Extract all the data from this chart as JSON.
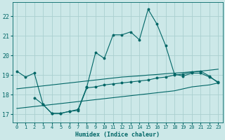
{
  "xlabel": "Humidex (Indice chaleur)",
  "bg_color": "#cce8e8",
  "grid_color": "#aacfcf",
  "line_color": "#006666",
  "xlim": [
    -0.5,
    23.5
  ],
  "ylim": [
    16.6,
    22.7
  ],
  "xticks": [
    0,
    1,
    2,
    3,
    4,
    5,
    6,
    7,
    8,
    9,
    10,
    11,
    12,
    13,
    14,
    15,
    16,
    17,
    18,
    19,
    20,
    21,
    22,
    23
  ],
  "yticks": [
    17,
    18,
    19,
    20,
    21,
    22
  ],
  "line1_x": [
    0,
    1,
    2,
    3,
    4,
    5,
    6,
    7,
    8,
    9,
    10,
    11,
    12,
    13,
    14,
    15,
    16,
    17,
    18,
    19,
    20,
    21,
    22,
    23
  ],
  "line1_y": [
    19.2,
    18.9,
    19.1,
    17.5,
    17.05,
    17.05,
    17.15,
    17.25,
    18.4,
    20.15,
    19.85,
    21.05,
    21.05,
    21.2,
    20.8,
    22.35,
    21.6,
    20.5,
    19.05,
    18.95,
    19.1,
    19.1,
    18.9,
    18.65
  ],
  "line2_x": [
    0,
    1,
    2,
    3,
    4,
    5,
    6,
    7,
    8,
    9,
    10,
    11,
    12,
    13,
    14,
    15,
    16,
    17,
    18,
    19,
    20,
    21,
    22,
    23
  ],
  "line2_y": [
    18.3,
    18.35,
    18.4,
    18.45,
    18.5,
    18.55,
    18.6,
    18.65,
    18.7,
    18.75,
    18.8,
    18.85,
    18.9,
    18.93,
    18.96,
    19.0,
    19.03,
    19.07,
    19.1,
    19.13,
    19.17,
    19.2,
    19.25,
    19.3
  ],
  "line3_x": [
    0,
    1,
    2,
    3,
    4,
    5,
    6,
    7,
    8,
    9,
    10,
    11,
    12,
    13,
    14,
    15,
    16,
    17,
    18,
    19,
    20,
    21,
    22,
    23
  ],
  "line3_y": [
    17.3,
    17.35,
    17.4,
    17.45,
    17.5,
    17.55,
    17.6,
    17.65,
    17.7,
    17.75,
    17.8,
    17.85,
    17.9,
    17.95,
    18.0,
    18.05,
    18.1,
    18.15,
    18.2,
    18.3,
    18.4,
    18.45,
    18.5,
    18.6
  ],
  "line4_x": [
    2,
    3,
    4,
    5,
    6,
    7,
    8,
    9,
    10,
    11,
    12,
    13,
    14,
    15,
    16,
    17,
    18,
    19,
    20,
    21,
    22,
    23
  ],
  "line4_y": [
    17.85,
    17.5,
    17.05,
    17.05,
    17.15,
    17.2,
    18.35,
    18.4,
    18.5,
    18.55,
    18.6,
    18.65,
    18.7,
    18.75,
    18.85,
    18.9,
    19.0,
    19.05,
    19.15,
    19.2,
    18.95,
    18.6
  ]
}
